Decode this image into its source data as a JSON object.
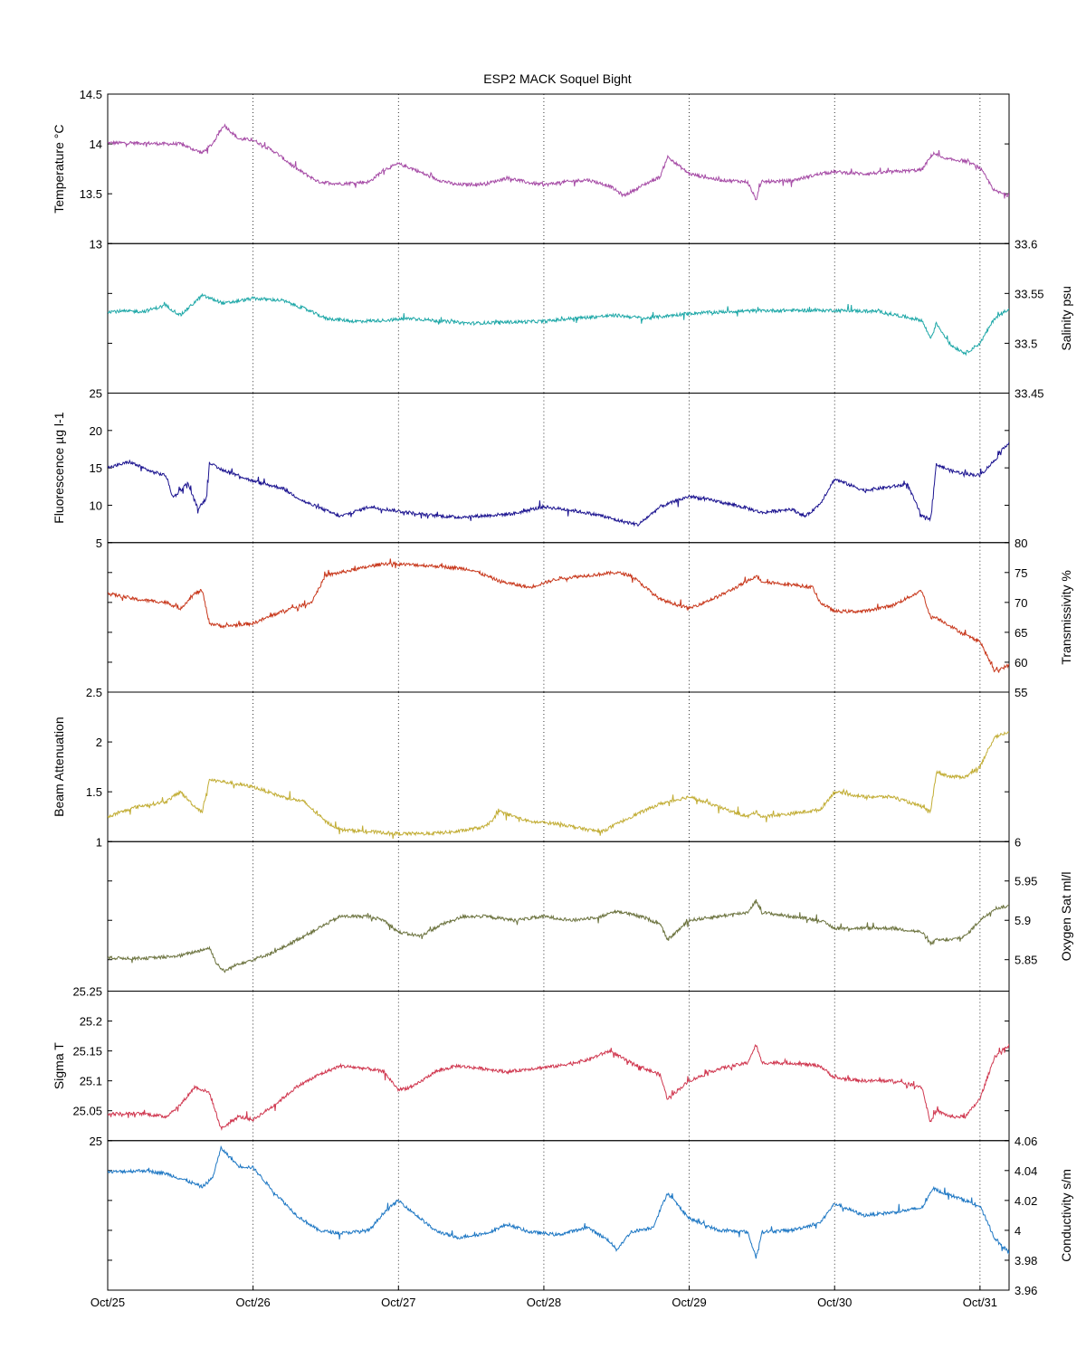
{
  "title": "ESP2 MACK  Soquel Bight",
  "colors": {
    "temperature": "#a64ca6",
    "salinity": "#1fa8a8",
    "fluorescence": "#1c1490",
    "transmissivity": "#c8381c",
    "beam_attenuation": "#c2ad35",
    "oxygen": "#6d7440",
    "sigma_t": "#d03850",
    "conductivity": "#1f78c4"
  },
  "chart_data": {
    "type": "line",
    "x_ticks": [
      "Oct/25",
      "Oct/26",
      "Oct/27",
      "Oct/28",
      "Oct/29",
      "Oct/30",
      "Oct/31"
    ],
    "x_range_days": [
      0,
      6.2
    ],
    "panels": [
      {
        "key": "temperature",
        "ylabel": "Temperature °C",
        "axis_side": "left",
        "ylim": [
          13,
          14.5
        ],
        "ticks": [
          13,
          13.5,
          14,
          14.5
        ],
        "labels": [
          "13",
          "13.5",
          "14",
          "14.5"
        ],
        "x": [
          0,
          0.2,
          0.4,
          0.5,
          0.65,
          0.72,
          0.8,
          0.9,
          1.0,
          1.15,
          1.3,
          1.45,
          1.6,
          1.8,
          1.9,
          2.0,
          2.1,
          2.25,
          2.4,
          2.6,
          2.75,
          2.9,
          3.0,
          3.15,
          3.3,
          3.45,
          3.55,
          3.7,
          3.8,
          3.85,
          4.0,
          4.2,
          4.4,
          4.46,
          4.5,
          4.7,
          4.9,
          5.0,
          5.2,
          5.4,
          5.6,
          5.68,
          5.75,
          5.9,
          6.0,
          6.1,
          6.2
        ],
        "values": [
          14.01,
          14.01,
          14.0,
          14.0,
          13.91,
          14.0,
          14.19,
          14.05,
          14.04,
          13.92,
          13.75,
          13.62,
          13.6,
          13.62,
          13.74,
          13.8,
          13.75,
          13.65,
          13.59,
          13.6,
          13.66,
          13.61,
          13.59,
          13.62,
          13.64,
          13.58,
          13.48,
          13.6,
          13.67,
          13.87,
          13.7,
          13.64,
          13.62,
          13.44,
          13.62,
          13.63,
          13.7,
          13.72,
          13.7,
          13.72,
          13.74,
          13.91,
          13.85,
          13.83,
          13.76,
          13.53,
          13.48
        ]
      },
      {
        "key": "salinity",
        "ylabel": "Salinity psu",
        "axis_side": "right",
        "ylim": [
          33.45,
          33.6
        ],
        "ticks": [
          33.45,
          33.5,
          33.55,
          33.6
        ],
        "labels": [
          "33.45",
          "33.5",
          "33.55",
          "33.6"
        ],
        "x": [
          0,
          0.25,
          0.4,
          0.5,
          0.65,
          0.8,
          1.0,
          1.2,
          1.35,
          1.5,
          1.7,
          1.9,
          2.1,
          2.3,
          2.5,
          2.7,
          3.0,
          3.2,
          3.5,
          3.7,
          4.0,
          4.3,
          4.6,
          5.0,
          5.3,
          5.5,
          5.6,
          5.66,
          5.7,
          5.8,
          5.9,
          6.0,
          6.1,
          6.2
        ],
        "values": [
          33.532,
          33.532,
          33.538,
          33.528,
          33.548,
          33.54,
          33.545,
          33.543,
          33.535,
          33.525,
          33.522,
          33.523,
          33.525,
          33.522,
          33.52,
          33.521,
          33.522,
          33.525,
          33.528,
          33.525,
          33.53,
          33.532,
          33.533,
          33.533,
          33.532,
          33.526,
          33.523,
          33.505,
          33.52,
          33.498,
          33.49,
          33.5,
          33.525,
          33.535
        ]
      },
      {
        "key": "fluorescence",
        "ylabel": "Fluorescence µg l-1",
        "axis_side": "left",
        "ylim": [
          5,
          25
        ],
        "ticks": [
          5,
          10,
          15,
          20,
          25
        ],
        "labels": [
          "5",
          "10",
          "15",
          "20",
          "25"
        ],
        "x": [
          0,
          0.15,
          0.3,
          0.4,
          0.45,
          0.55,
          0.62,
          0.68,
          0.7,
          0.75,
          0.9,
          1.0,
          1.2,
          1.35,
          1.5,
          1.6,
          1.8,
          2.0,
          2.2,
          2.4,
          2.6,
          2.8,
          3.0,
          3.2,
          3.4,
          3.5,
          3.65,
          3.8,
          4.0,
          4.2,
          4.4,
          4.5,
          4.7,
          4.8,
          4.9,
          5.0,
          5.2,
          5.4,
          5.5,
          5.6,
          5.66,
          5.7,
          5.8,
          5.9,
          6.0,
          6.1,
          6.2
        ],
        "values": [
          15.0,
          15.8,
          14.5,
          14.0,
          11.0,
          13.0,
          9.5,
          11.0,
          15.8,
          15.0,
          14.0,
          13.2,
          12.3,
          10.5,
          9.3,
          8.5,
          9.8,
          9.2,
          8.7,
          8.4,
          8.6,
          8.9,
          9.8,
          9.3,
          8.6,
          8.0,
          7.4,
          9.8,
          11.2,
          10.5,
          9.6,
          9.0,
          9.5,
          8.5,
          10.2,
          13.5,
          12.0,
          12.5,
          12.8,
          8.5,
          8.2,
          15.5,
          14.6,
          14.2,
          14.0,
          16.0,
          18.5
        ]
      },
      {
        "key": "transmissivity",
        "ylabel": "Transmissivity %",
        "axis_side": "right",
        "ylim": [
          55,
          80
        ],
        "ticks": [
          55,
          60,
          65,
          70,
          75,
          80
        ],
        "labels": [
          "55",
          "60",
          "65",
          "70",
          "75",
          "80"
        ],
        "x": [
          0,
          0.2,
          0.4,
          0.5,
          0.6,
          0.65,
          0.7,
          0.8,
          1.0,
          1.2,
          1.4,
          1.5,
          1.7,
          1.9,
          2.1,
          2.3,
          2.5,
          2.7,
          2.9,
          3.1,
          3.3,
          3.5,
          3.6,
          3.8,
          4.0,
          4.2,
          4.4,
          4.46,
          4.5,
          4.7,
          4.85,
          4.9,
          5.0,
          5.2,
          5.4,
          5.6,
          5.66,
          5.7,
          5.8,
          5.9,
          6.0,
          6.1,
          6.2
        ],
        "values": [
          71.5,
          70.5,
          70.0,
          69.0,
          71.5,
          72.0,
          66.5,
          66.0,
          66.5,
          68.5,
          70.0,
          74.5,
          75.5,
          76.5,
          76.3,
          76.0,
          75.5,
          73.5,
          72.5,
          74.0,
          74.5,
          75.0,
          74.5,
          70.5,
          69.0,
          71.0,
          73.5,
          74.5,
          73.5,
          73.0,
          72.5,
          70.0,
          68.5,
          68.5,
          69.5,
          72.0,
          67.5,
          67.5,
          66.0,
          64.5,
          63.5,
          58.5,
          59.5
        ]
      },
      {
        "key": "beam_attenuation",
        "ylabel": "Beam Attenuation",
        "axis_side": "left",
        "ylim": [
          1,
          2.5
        ],
        "ticks": [
          1,
          1.5,
          2,
          2.5
        ],
        "labels": [
          "1",
          "1.5",
          "2",
          "2.5"
        ],
        "x": [
          0,
          0.2,
          0.4,
          0.5,
          0.6,
          0.65,
          0.7,
          0.8,
          1.0,
          1.2,
          1.35,
          1.5,
          1.6,
          1.8,
          2.0,
          2.2,
          2.4,
          2.6,
          2.7,
          2.9,
          3.1,
          3.3,
          3.4,
          3.6,
          3.8,
          4.0,
          4.2,
          4.4,
          4.46,
          4.5,
          4.7,
          4.9,
          5.0,
          5.2,
          5.4,
          5.6,
          5.66,
          5.7,
          5.8,
          5.9,
          6.0,
          6.1,
          6.2
        ],
        "values": [
          1.25,
          1.35,
          1.4,
          1.5,
          1.35,
          1.3,
          1.62,
          1.6,
          1.55,
          1.45,
          1.4,
          1.2,
          1.12,
          1.1,
          1.08,
          1.08,
          1.1,
          1.15,
          1.3,
          1.2,
          1.18,
          1.12,
          1.1,
          1.25,
          1.38,
          1.45,
          1.35,
          1.25,
          1.3,
          1.25,
          1.28,
          1.32,
          1.5,
          1.45,
          1.45,
          1.35,
          1.3,
          1.7,
          1.65,
          1.65,
          1.75,
          2.05,
          2.1
        ]
      },
      {
        "key": "oxygen",
        "ylabel": "Oxygen Sat ml/l",
        "axis_side": "right",
        "ylim": [
          5.81,
          6.0
        ],
        "ticks": [
          5.85,
          5.9,
          5.95,
          6.0
        ],
        "labels": [
          "5.85",
          "5.9",
          "5.95",
          "6"
        ],
        "x": [
          0,
          0.3,
          0.5,
          0.6,
          0.7,
          0.75,
          0.8,
          0.9,
          1.0,
          1.15,
          1.3,
          1.45,
          1.6,
          1.8,
          1.9,
          2.0,
          2.15,
          2.3,
          2.45,
          2.6,
          2.8,
          3.0,
          3.2,
          3.4,
          3.5,
          3.7,
          3.8,
          3.85,
          4.0,
          4.2,
          4.4,
          4.46,
          4.5,
          4.7,
          4.9,
          5.0,
          5.2,
          5.4,
          5.6,
          5.66,
          5.7,
          5.8,
          5.9,
          6.0,
          6.1,
          6.2
        ],
        "values": [
          5.852,
          5.852,
          5.855,
          5.86,
          5.865,
          5.845,
          5.835,
          5.845,
          5.85,
          5.86,
          5.875,
          5.89,
          5.905,
          5.905,
          5.9,
          5.885,
          5.88,
          5.895,
          5.905,
          5.905,
          5.9,
          5.905,
          5.9,
          5.905,
          5.912,
          5.903,
          5.895,
          5.875,
          5.9,
          5.905,
          5.91,
          5.925,
          5.91,
          5.905,
          5.9,
          5.89,
          5.89,
          5.89,
          5.885,
          5.87,
          5.875,
          5.875,
          5.88,
          5.9,
          5.915,
          5.918
        ]
      },
      {
        "key": "sigma_t",
        "ylabel": "Sigma T",
        "axis_side": "left",
        "ylim": [
          25,
          25.25
        ],
        "ticks": [
          25,
          25.05,
          25.1,
          25.15,
          25.2,
          25.25
        ],
        "labels": [
          "25",
          "25.05",
          "25.1",
          "25.15",
          "25.2",
          "25.25"
        ],
        "x": [
          0,
          0.25,
          0.4,
          0.5,
          0.6,
          0.7,
          0.78,
          0.9,
          1.0,
          1.15,
          1.3,
          1.45,
          1.6,
          1.8,
          1.9,
          2.0,
          2.1,
          2.25,
          2.4,
          2.6,
          2.75,
          2.9,
          3.1,
          3.3,
          3.45,
          3.6,
          3.7,
          3.8,
          3.85,
          4.0,
          4.2,
          4.4,
          4.46,
          4.5,
          4.7,
          4.9,
          5.0,
          5.2,
          5.4,
          5.6,
          5.66,
          5.7,
          5.8,
          5.9,
          6.0,
          6.1,
          6.2
        ],
        "values": [
          25.045,
          25.045,
          25.04,
          25.06,
          25.09,
          25.08,
          25.02,
          25.04,
          25.035,
          25.06,
          25.09,
          25.11,
          25.125,
          25.12,
          25.115,
          25.085,
          25.09,
          25.115,
          25.125,
          25.12,
          25.115,
          25.12,
          25.125,
          25.135,
          25.15,
          25.13,
          25.12,
          25.11,
          25.07,
          25.1,
          25.12,
          25.13,
          25.16,
          25.13,
          25.13,
          25.125,
          25.105,
          25.1,
          25.1,
          25.09,
          25.03,
          25.05,
          25.04,
          25.04,
          25.07,
          25.14,
          25.16
        ]
      },
      {
        "key": "conductivity",
        "ylabel": "Conductivity s/m",
        "axis_side": "right",
        "ylim": [
          3.96,
          4.06
        ],
        "ticks": [
          3.96,
          3.98,
          4.0,
          4.02,
          4.04,
          4.06
        ],
        "labels": [
          "3.96",
          "3.98",
          "4",
          "4.02",
          "4.04",
          "4.06"
        ],
        "x": [
          0,
          0.25,
          0.4,
          0.55,
          0.65,
          0.72,
          0.78,
          0.9,
          1.0,
          1.15,
          1.3,
          1.45,
          1.6,
          1.8,
          1.9,
          2.0,
          2.1,
          2.25,
          2.4,
          2.6,
          2.75,
          2.9,
          3.1,
          3.3,
          3.45,
          3.5,
          3.6,
          3.75,
          3.85,
          4.0,
          4.2,
          4.4,
          4.46,
          4.5,
          4.7,
          4.9,
          5.0,
          5.2,
          5.4,
          5.6,
          5.68,
          5.75,
          5.9,
          6.0,
          6.1,
          6.2
        ],
        "values": [
          4.039,
          4.04,
          4.038,
          4.033,
          4.029,
          4.035,
          4.055,
          4.043,
          4.042,
          4.025,
          4.01,
          4.0,
          3.998,
          4.0,
          4.012,
          4.02,
          4.012,
          4.0,
          3.995,
          3.998,
          4.004,
          3.999,
          3.997,
          4.002,
          3.993,
          3.987,
          3.999,
          4.002,
          4.025,
          4.008,
          4.0,
          3.999,
          3.982,
          3.999,
          4.0,
          4.005,
          4.018,
          4.01,
          4.012,
          4.015,
          4.028,
          4.025,
          4.02,
          4.016,
          3.995,
          3.985
        ]
      }
    ]
  }
}
